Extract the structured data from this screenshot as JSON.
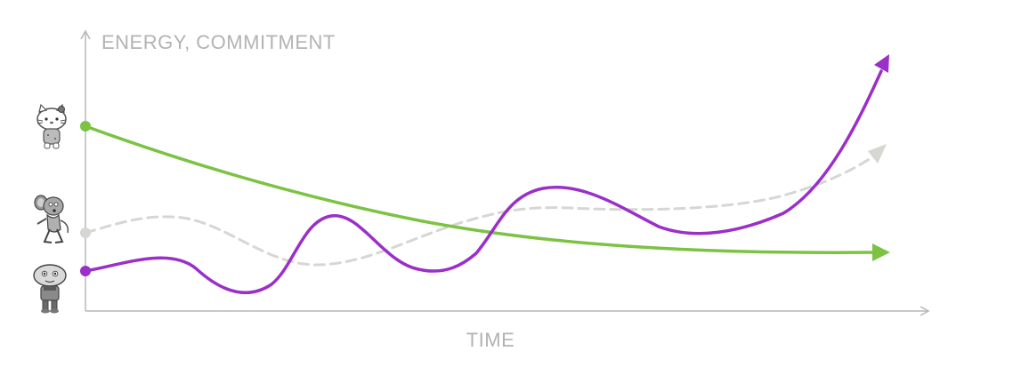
{
  "chart_data": {
    "type": "line",
    "ylabel": "ENERGY, COMMITMENT",
    "xlabel": "TIME",
    "series": [
      {
        "key": "green",
        "color": "#7cc243",
        "style": "solid",
        "icon": "hello-kitty-icon"
      },
      {
        "key": "gray",
        "color": "#d6d6d2",
        "style": "dashed",
        "icon": "jerry-mouse-icon"
      },
      {
        "key": "purple",
        "color": "#9a2fc9",
        "style": "solid",
        "icon": "stewie-griffin-icon"
      }
    ]
  },
  "colors": {
    "axis": "#b7b7b7",
    "label": "#b3b3b3"
  }
}
